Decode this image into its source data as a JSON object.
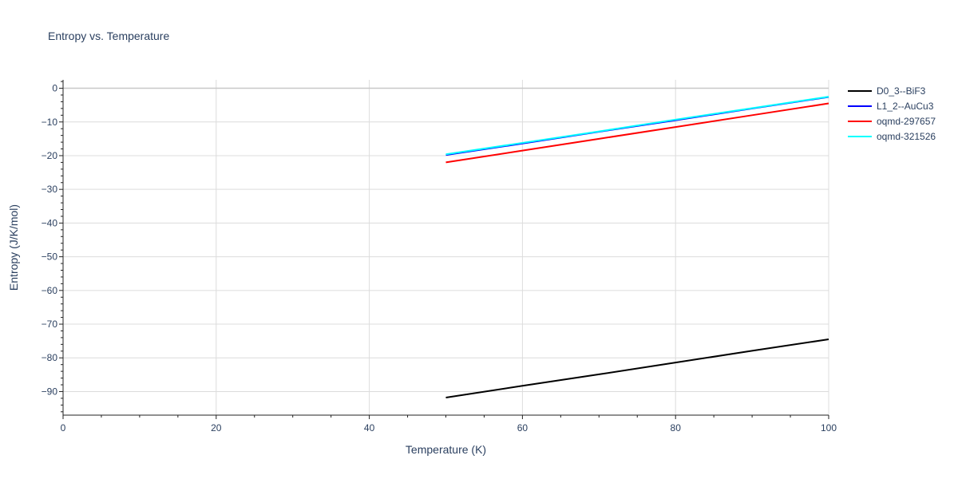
{
  "chart_data": {
    "type": "line",
    "title": "Entropy vs. Temperature",
    "xlabel": "Temperature (K)",
    "ylabel": "Entropy (J/K/mol)",
    "xlim": [
      0,
      100
    ],
    "ylim": [
      -97,
      2.5
    ],
    "x_ticks": [
      0,
      20,
      40,
      60,
      80,
      100
    ],
    "y_ticks": [
      0,
      -10,
      -20,
      -30,
      -40,
      -50,
      -60,
      -70,
      -80,
      -90
    ],
    "grid": true,
    "legend_position": "right",
    "series": [
      {
        "name": "D0_3--BiF3",
        "color": "#000000",
        "x": [
          50,
          60,
          70,
          80,
          90,
          100
        ],
        "y": [
          -91.8,
          -88.3,
          -84.9,
          -81.4,
          -77.9,
          -74.5
        ]
      },
      {
        "name": "L1_2--AuCu3",
        "color": "#0000ff",
        "x": [
          50,
          60,
          70,
          80,
          90,
          100
        ],
        "y": [
          -19.8,
          -16.4,
          -12.9,
          -9.5,
          -6.0,
          -2.6
        ]
      },
      {
        "name": "oqmd-297657",
        "color": "#ff0000",
        "x": [
          50,
          60,
          70,
          80,
          90,
          100
        ],
        "y": [
          -22.0,
          -18.5,
          -15.0,
          -11.5,
          -8.0,
          -4.5
        ]
      },
      {
        "name": "oqmd-321526",
        "color": "#00ffff",
        "x": [
          50,
          60,
          70,
          80,
          90,
          100
        ],
        "y": [
          -19.6,
          -16.2,
          -12.8,
          -9.3,
          -5.9,
          -2.5
        ]
      }
    ]
  }
}
